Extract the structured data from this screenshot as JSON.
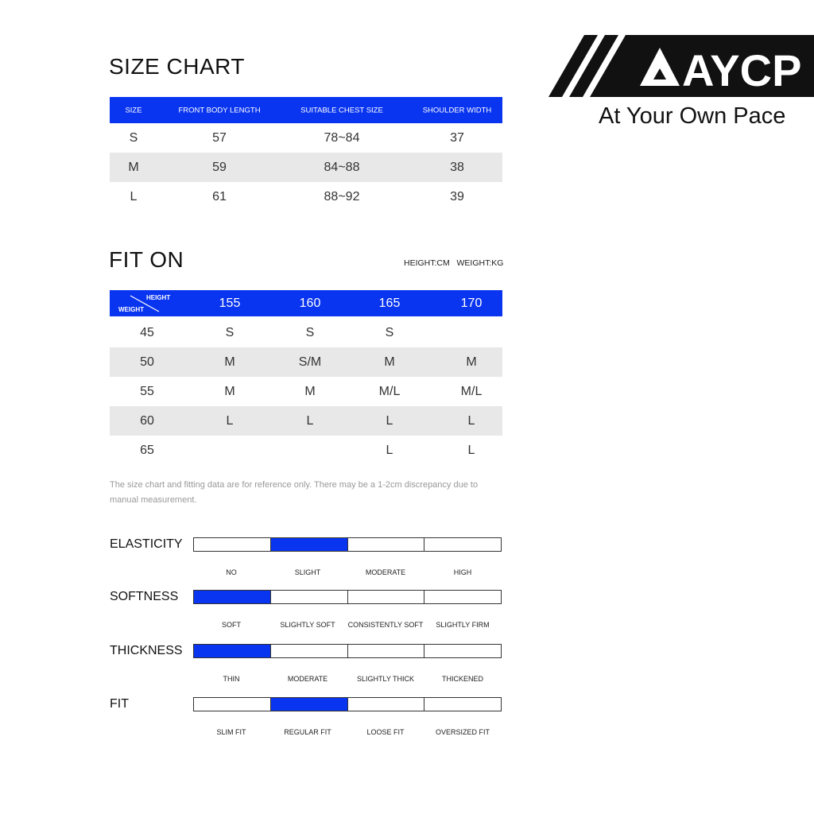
{
  "brand": {
    "logo_text": "AYCP",
    "tagline": "At Your Own Pace"
  },
  "size_chart": {
    "title": "SIZE CHART",
    "headers": [
      "SIZE",
      "FRONT BODY LENGTH",
      "SUITABLE CHEST SIZE",
      "SHOULDER WIDTH"
    ],
    "rows": [
      [
        "S",
        "57",
        "78~84",
        "37"
      ],
      [
        "M",
        "59",
        "84~88",
        "38"
      ],
      [
        "L",
        "61",
        "88~92",
        "39"
      ]
    ]
  },
  "fit_on": {
    "title": "FIT ON",
    "units": "HEIGHT:CM   WEIGHT:KG",
    "corner_top": "HEIGHT",
    "corner_bottom": "WEIGHT",
    "heights": [
      "155",
      "160",
      "165",
      "170"
    ],
    "rows": [
      {
        "weight": "45",
        "sizes": [
          "S",
          "S",
          "S",
          ""
        ]
      },
      {
        "weight": "50",
        "sizes": [
          "M",
          "S/M",
          "M",
          "M"
        ]
      },
      {
        "weight": "55",
        "sizes": [
          "M",
          "M",
          "M/L",
          "M/L"
        ]
      },
      {
        "weight": "60",
        "sizes": [
          "L",
          "L",
          "L",
          "L"
        ]
      },
      {
        "weight": "65",
        "sizes": [
          "",
          "",
          "L",
          "L"
        ]
      }
    ]
  },
  "note": "The size chart and fitting data are for reference only. There may be a 1-2cm discrepancy due to manual measurement.",
  "attributes": [
    {
      "name": "ELASTICITY",
      "options": [
        "NO",
        "SLIGHT",
        "MODERATE",
        "HIGH"
      ],
      "selected": 1
    },
    {
      "name": "SOFTNESS",
      "options": [
        "SOFT",
        "SLIGHTLY SOFT",
        "CONSISTENTLY SOFT",
        "SLIGHTLY FIRM"
      ],
      "selected": 0
    },
    {
      "name": "THICKNESS",
      "options": [
        "THIN",
        "MODERATE",
        "SLIGHTLY THICK",
        "THICKENED"
      ],
      "selected": 0
    },
    {
      "name": "FIT",
      "options": [
        "SLIM FIT",
        "REGULAR FIT",
        "LOOSE FIT",
        "OVERSIZED FIT"
      ],
      "selected": 1
    }
  ],
  "colors": {
    "accent": "#0a35f0",
    "row_alt": "#e8e8e8"
  }
}
